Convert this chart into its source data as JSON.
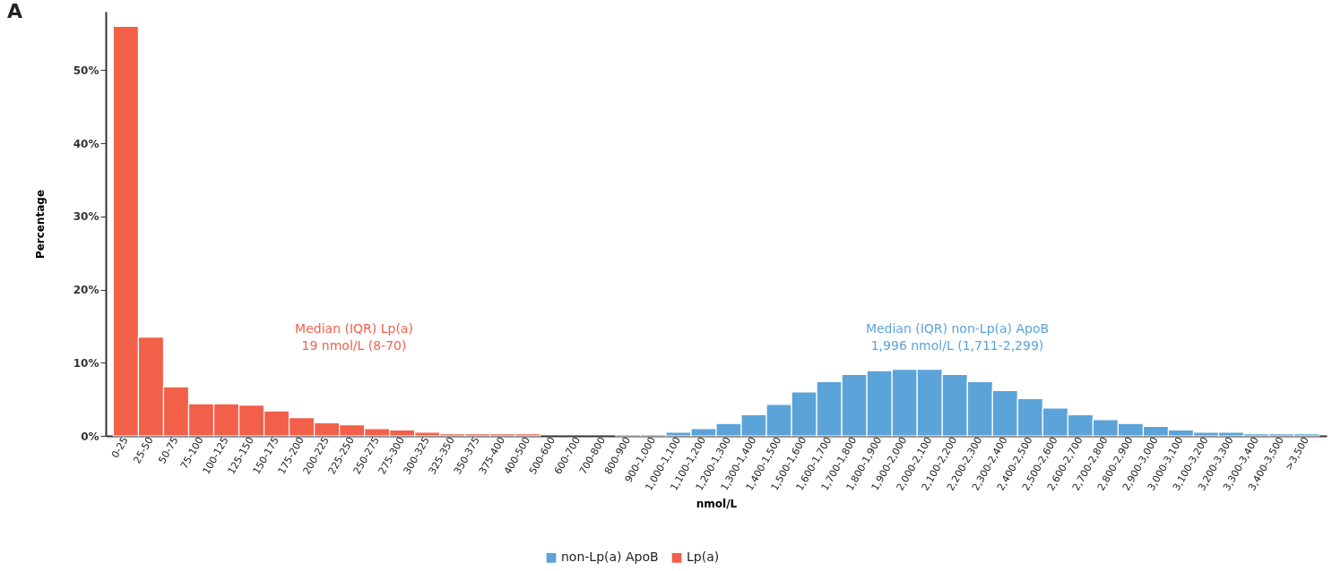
{
  "chart_data": {
    "type": "bar",
    "title": "A",
    "xlabel": "nmol/L",
    "ylabel": "Percentage",
    "categories": [
      "0-25",
      "25-50",
      "50-75",
      "75-100",
      "100-125",
      "125-150",
      "150-175",
      "175-200",
      "200-225",
      "225-250",
      "250-275",
      "275-300",
      "300-325",
      "325-350",
      "350-375",
      "375-400",
      "400-500",
      "500-600",
      "600-700",
      "700-800",
      "800-900",
      "900-1,000",
      "1,000-1,100",
      "1,100-1,200",
      "1,200-1,300",
      "1,300-1,400",
      "1,400-1,500",
      "1,500-1,600",
      "1,600-1,700",
      "1,700-1,800",
      "1,800-1,900",
      "1,900-2,000",
      "2,000-2,100",
      "2,100-2,200",
      "2,200-2,300",
      "2,300-2,400",
      "2,400-2,500",
      "2,500-2,600",
      "2,600-2,700",
      "2,700-2,800",
      "2,800-2,900",
      "2,900-3,000",
      "3,000-3,100",
      "3,100-3,200",
      "3,200-3,300",
      "3,300-3,400",
      "3,400-3,500",
      ">3,500"
    ],
    "series": [
      {
        "name": "non-Lp(a) ApoB",
        "color": "#5ba3d9",
        "values": [
          null,
          null,
          null,
          null,
          null,
          null,
          null,
          null,
          null,
          null,
          null,
          null,
          null,
          null,
          null,
          null,
          null,
          null,
          null,
          null,
          0.2,
          0.2,
          0.5,
          1.0,
          1.7,
          2.9,
          4.3,
          6.0,
          7.4,
          8.4,
          8.9,
          9.1,
          9.1,
          8.4,
          7.4,
          6.2,
          5.1,
          3.8,
          2.9,
          2.2,
          1.7,
          1.3,
          0.8,
          0.5,
          0.5,
          0.3,
          0.3,
          0.3
        ]
      },
      {
        "name": "Lp(a)",
        "color": "#f2604a",
        "values": [
          56,
          13.5,
          6.7,
          4.4,
          4.4,
          4.2,
          3.4,
          2.5,
          1.8,
          1.5,
          1.0,
          0.8,
          0.5,
          0.3,
          0.3,
          0.3,
          0.3,
          null,
          null,
          null,
          null,
          null,
          null,
          null,
          null,
          null,
          null,
          null,
          null,
          null,
          null,
          null,
          null,
          null,
          null,
          null,
          null,
          null,
          null,
          null,
          null,
          null,
          null,
          null,
          null,
          null,
          null,
          null
        ]
      }
    ],
    "ylim": [
      0,
      58
    ],
    "yticks": [
      {
        "value": 0,
        "label": "0%"
      },
      {
        "value": 10,
        "label": "10%"
      },
      {
        "value": 20,
        "label": "20%"
      },
      {
        "value": 30,
        "label": "30%"
      },
      {
        "value": 40,
        "label": "40%"
      },
      {
        "value": 50,
        "label": "50%"
      }
    ],
    "annotations": [
      "Median (IQR) Lp(a)",
      "19 nmol/L (8-70)",
      "Median (IQR) non-Lp(a) ApoB",
      "1,996 nmol/L (1,711-2,299)"
    ],
    "legend": "bottom"
  }
}
